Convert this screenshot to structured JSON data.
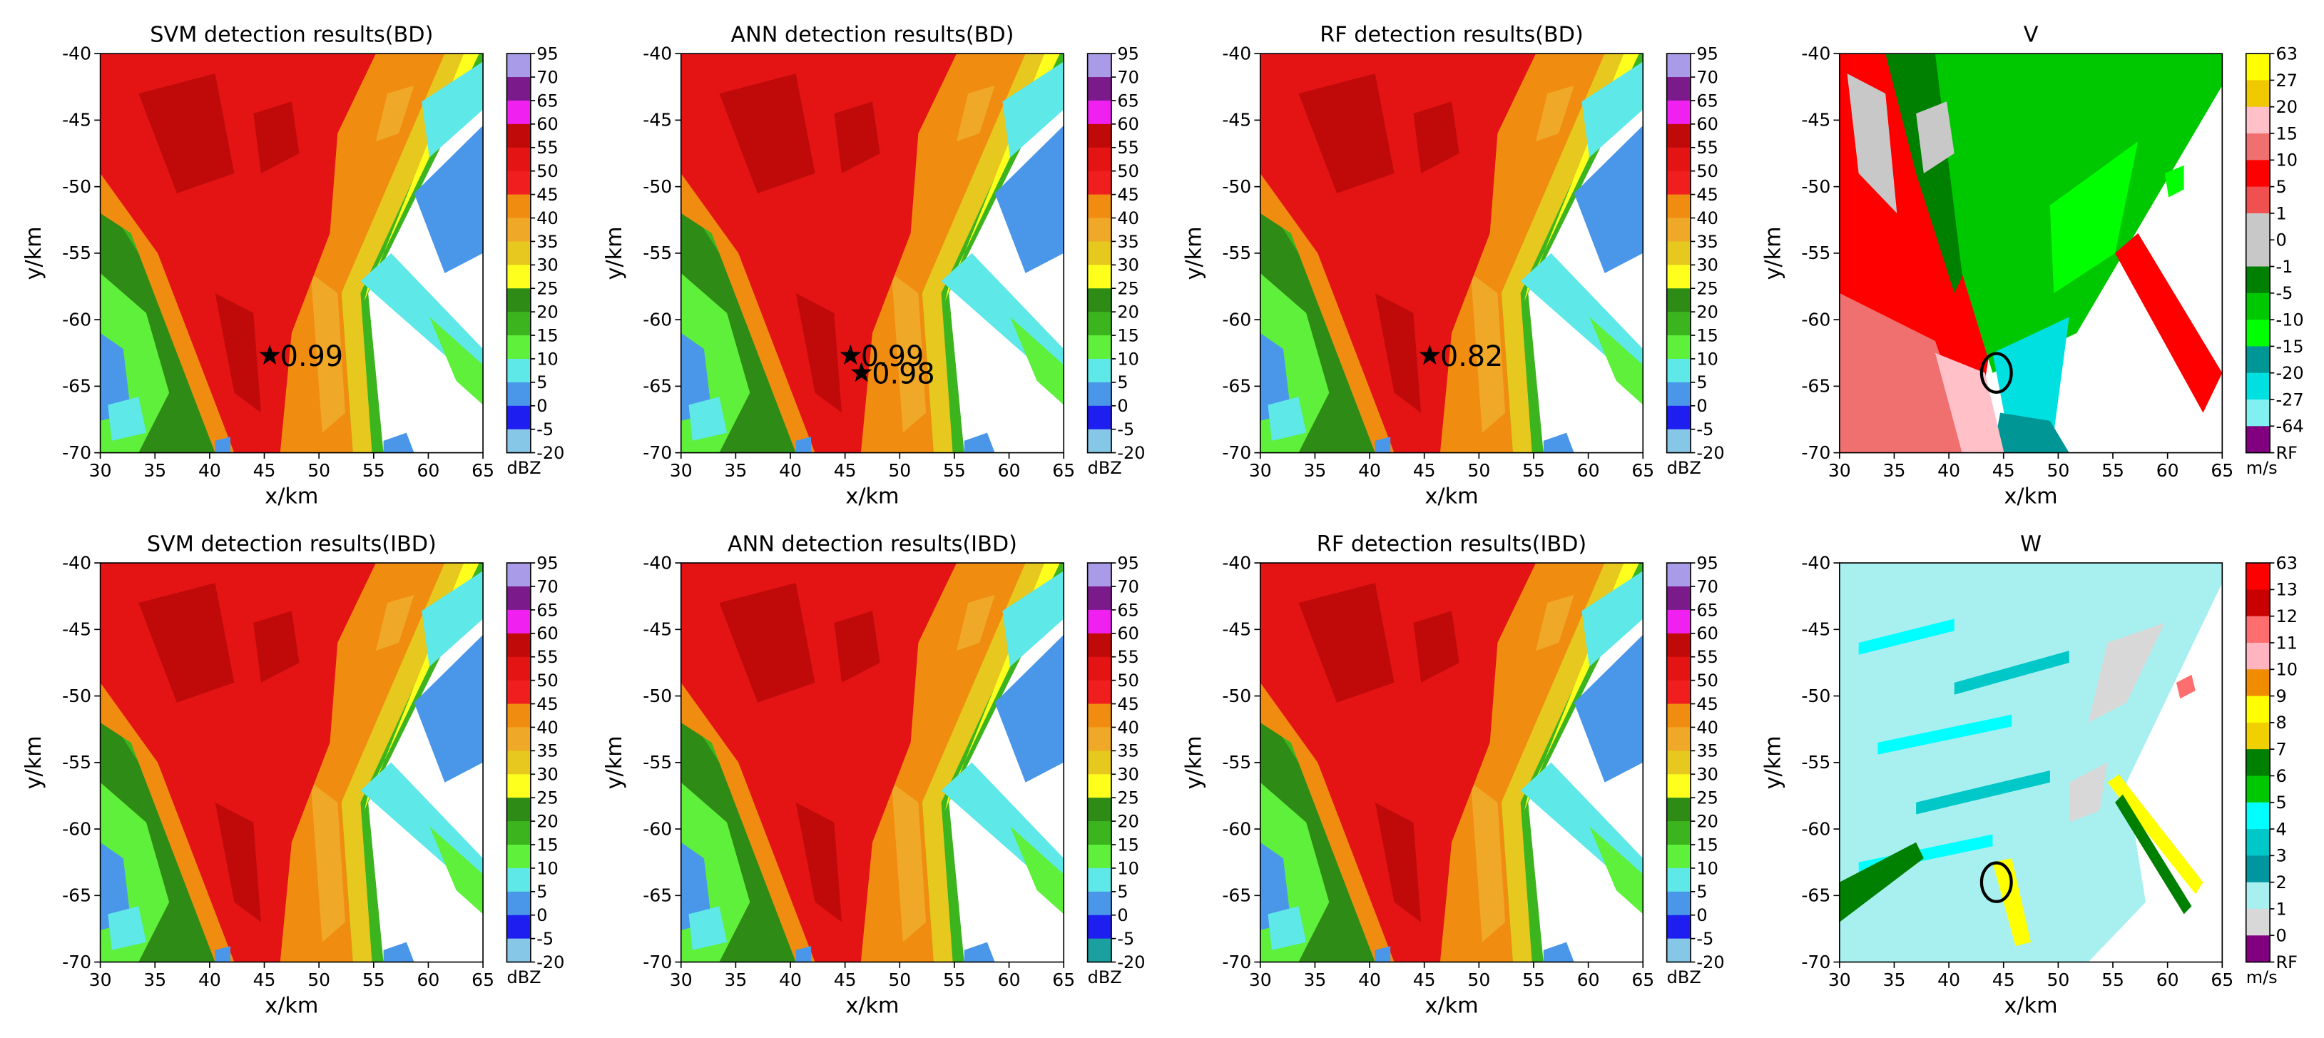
{
  "chart_data": [
    {
      "type": "heatmap",
      "title": "SVM detection results(BD)",
      "xlabel": "x/km",
      "ylabel": "y/km",
      "xlim": [
        30,
        65
      ],
      "ylim": [
        -70,
        -40
      ],
      "xticks": [
        30,
        35,
        40,
        45,
        50,
        55,
        60,
        65
      ],
      "yticks": [
        -40,
        -45,
        -50,
        -55,
        -60,
        -65,
        -70
      ],
      "colorbar": {
        "labels": [
          95,
          70,
          65,
          60,
          55,
          50,
          45,
          40,
          35,
          30,
          25,
          20,
          15,
          10,
          5,
          0,
          -5,
          -20
        ],
        "colors": [
          "#a99be8",
          "#7b1b8b",
          "#f020f0",
          "#c00a0a",
          "#e41414",
          "#f01e1e",
          "#f08c10",
          "#f0a828",
          "#e6c81e",
          "#ffff1e",
          "#2e8b16",
          "#3cb41e",
          "#5ef03a",
          "#5ee8e8",
          "#4a96e8",
          "#1e1ef0",
          "#86c6e6"
        ],
        "unit": "dBZ"
      },
      "annotations": [
        {
          "x": 45.5,
          "y": -62.7,
          "value": 0.99
        }
      ]
    },
    {
      "type": "heatmap",
      "title": "ANN detection results(BD)",
      "xlabel": "x/km",
      "ylabel": "y/km",
      "xlim": [
        30,
        65
      ],
      "ylim": [
        -70,
        -40
      ],
      "xticks": [
        30,
        35,
        40,
        45,
        50,
        55,
        60,
        65
      ],
      "yticks": [
        -40,
        -45,
        -50,
        -55,
        -60,
        -65,
        -70
      ],
      "colorbar": {
        "labels": [
          95,
          70,
          65,
          60,
          55,
          50,
          45,
          40,
          35,
          30,
          25,
          20,
          15,
          10,
          5,
          0,
          -5,
          -20
        ],
        "colors": [
          "#a99be8",
          "#7b1b8b",
          "#f020f0",
          "#c00a0a",
          "#e41414",
          "#f01e1e",
          "#f08c10",
          "#f0a828",
          "#e6c81e",
          "#ffff1e",
          "#2e8b16",
          "#3cb41e",
          "#5ef03a",
          "#5ee8e8",
          "#4a96e8",
          "#1e1ef0",
          "#86c6e6"
        ],
        "unit": "dBZ"
      },
      "annotations": [
        {
          "x": 45.5,
          "y": -62.7,
          "value": 0.99
        },
        {
          "x": 46.5,
          "y": -64,
          "value": 0.98
        }
      ]
    },
    {
      "type": "heatmap",
      "title": "RF detection results(BD)",
      "xlabel": "x/km",
      "ylabel": "y/km",
      "xlim": [
        30,
        65
      ],
      "ylim": [
        -70,
        -40
      ],
      "xticks": [
        30,
        35,
        40,
        45,
        50,
        55,
        60,
        65
      ],
      "yticks": [
        -40,
        -45,
        -50,
        -55,
        -60,
        -65,
        -70
      ],
      "colorbar": {
        "labels": [
          95,
          70,
          65,
          60,
          55,
          50,
          45,
          40,
          35,
          30,
          25,
          20,
          15,
          10,
          5,
          0,
          -5,
          -20
        ],
        "colors": [
          "#a99be8",
          "#7b1b8b",
          "#f020f0",
          "#c00a0a",
          "#e41414",
          "#f01e1e",
          "#f08c10",
          "#f0a828",
          "#e6c81e",
          "#ffff1e",
          "#2e8b16",
          "#3cb41e",
          "#5ef03a",
          "#5ee8e8",
          "#4a96e8",
          "#1e1ef0",
          "#86c6e6"
        ],
        "unit": "dBZ"
      },
      "annotations": [
        {
          "x": 45.5,
          "y": -62.7,
          "value": 0.82
        }
      ]
    },
    {
      "type": "heatmap",
      "title": "V",
      "xlabel": "x/km",
      "ylabel": "y/km",
      "xlim": [
        30,
        65
      ],
      "ylim": [
        -70,
        -40
      ],
      "xticks": [
        30,
        35,
        40,
        45,
        50,
        55,
        60,
        65
      ],
      "yticks": [
        -40,
        -45,
        -50,
        -55,
        -60,
        -65,
        -70
      ],
      "colorbar": {
        "labels": [
          63,
          27,
          20,
          15,
          10,
          5,
          1,
          0,
          -1,
          -5,
          -10,
          -15,
          -20,
          -27,
          -64,
          "RF"
        ],
        "colors": [
          "#ffff00",
          "#f0c800",
          "#ffc0c8",
          "#f07070",
          "#ff0000",
          "#f05050",
          "#c8c8c8",
          "#c8c8c8",
          "#008000",
          "#00c800",
          "#00ff00",
          "#009696",
          "#00e0e0",
          "#80f0f0",
          "#800080"
        ],
        "unit": "m/s"
      }
    },
    {
      "type": "heatmap",
      "title": "SVM detection results(IBD)",
      "xlabel": "x/km",
      "ylabel": "y/km",
      "xlim": [
        30,
        65
      ],
      "ylim": [
        -70,
        -40
      ],
      "xticks": [
        30,
        35,
        40,
        45,
        50,
        55,
        60,
        65
      ],
      "yticks": [
        -40,
        -45,
        -50,
        -55,
        -60,
        -65,
        -70
      ],
      "colorbar": {
        "labels": [
          95,
          70,
          65,
          60,
          55,
          50,
          45,
          40,
          35,
          30,
          25,
          20,
          15,
          10,
          5,
          0,
          -5,
          -20
        ],
        "colors": [
          "#a99be8",
          "#7b1b8b",
          "#f020f0",
          "#c00a0a",
          "#e41414",
          "#f01e1e",
          "#f08c10",
          "#f0a828",
          "#e6c81e",
          "#ffff1e",
          "#2e8b16",
          "#3cb41e",
          "#5ef03a",
          "#5ee8e8",
          "#4a96e8",
          "#1e1ef0",
          "#86c6e6"
        ],
        "unit": "dBZ"
      }
    },
    {
      "type": "heatmap",
      "title": "ANN detection results(IBD)",
      "xlabel": "x/km",
      "ylabel": "y/km",
      "xlim": [
        30,
        65
      ],
      "ylim": [
        -70,
        -40
      ],
      "xticks": [
        30,
        35,
        40,
        45,
        50,
        55,
        60,
        65
      ],
      "yticks": [
        -40,
        -45,
        -50,
        -55,
        -60,
        -65,
        -70
      ],
      "colorbar": {
        "labels": [
          95,
          70,
          65,
          60,
          55,
          50,
          45,
          40,
          35,
          30,
          25,
          20,
          15,
          10,
          5,
          0,
          -5,
          -20
        ],
        "colors": [
          "#a99be8",
          "#7b1b8b",
          "#f020f0",
          "#c00a0a",
          "#e41414",
          "#f01e1e",
          "#f08c10",
          "#f0a828",
          "#e6c81e",
          "#ffff1e",
          "#2e8b16",
          "#3cb41e",
          "#5ef03a",
          "#5ee8e8",
          "#4a96e8",
          "#1e1ef0",
          "#1aa0a0"
        ],
        "unit": "dBZ"
      }
    },
    {
      "type": "heatmap",
      "title": "RF detection results(IBD)",
      "xlabel": "x/km",
      "ylabel": "y/km",
      "xlim": [
        30,
        65
      ],
      "ylim": [
        -70,
        -40
      ],
      "xticks": [
        30,
        35,
        40,
        45,
        50,
        55,
        60,
        65
      ],
      "yticks": [
        -40,
        -45,
        -50,
        -55,
        -60,
        -65,
        -70
      ],
      "colorbar": {
        "labels": [
          95,
          70,
          65,
          60,
          55,
          50,
          45,
          40,
          35,
          30,
          25,
          20,
          15,
          10,
          5,
          0,
          -5,
          -20
        ],
        "colors": [
          "#a99be8",
          "#7b1b8b",
          "#f020f0",
          "#c00a0a",
          "#e41414",
          "#f01e1e",
          "#f08c10",
          "#f0a828",
          "#e6c81e",
          "#ffff1e",
          "#2e8b16",
          "#3cb41e",
          "#5ef03a",
          "#5ee8e8",
          "#4a96e8",
          "#1e1ef0",
          "#86c6e6"
        ],
        "unit": "dBZ"
      }
    },
    {
      "type": "heatmap",
      "title": "W",
      "xlabel": "x/km",
      "ylabel": "y/km",
      "xlim": [
        30,
        65
      ],
      "ylim": [
        -70,
        -40
      ],
      "xticks": [
        30,
        35,
        40,
        45,
        50,
        55,
        60,
        65
      ],
      "yticks": [
        -40,
        -45,
        -50,
        -55,
        -60,
        -65,
        -70
      ],
      "colorbar": {
        "labels": [
          63,
          13,
          12,
          11,
          10,
          9,
          8,
          7,
          6,
          5,
          4,
          3,
          2,
          1,
          0,
          "RF"
        ],
        "colors": [
          "#ff0000",
          "#c80000",
          "#ff6e6e",
          "#ffb4c0",
          "#f08c00",
          "#ffff00",
          "#f0d000",
          "#008000",
          "#00c800",
          "#00ffff",
          "#00c8c8",
          "#0096a0",
          "#a8f0f0",
          "#d8d8d8",
          "#800080"
        ],
        "unit": "m/s"
      }
    }
  ]
}
